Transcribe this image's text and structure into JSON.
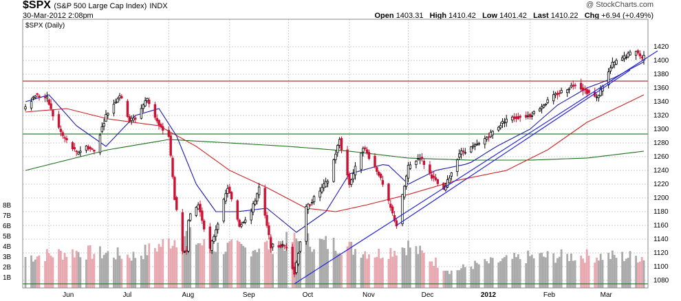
{
  "header": {
    "symbol": "$SPX",
    "name": "(S&P 500 Large Cap Index)",
    "exchange": "INDX",
    "datetime": "30-Mar-2012 2:08pm",
    "credit": "@ StockCharts.com",
    "quote": {
      "open_label": "Open",
      "open": "1403.31",
      "high_label": "High",
      "high": "1410.42",
      "low_label": "Low",
      "low": "1401.42",
      "last_label": "Last",
      "last": "1410.22",
      "chg_label": "Chg",
      "chg": "+6.94 (+0.49%)"
    }
  },
  "chart_data": {
    "type": "candlestick",
    "title": "$SPX (S&P 500 Large Cap Index)",
    "legend": "$SPX (Daily)",
    "price_axis": {
      "range": [
        1070,
        1425
      ],
      "ticks": [
        "1080",
        "1100",
        "1120",
        "1140",
        "1160",
        "1180",
        "1200",
        "1220",
        "1240",
        "1260",
        "1280",
        "1300",
        "1320",
        "1340",
        "1360",
        "1380",
        "1400",
        "1420"
      ]
    },
    "volume_axis": {
      "range": [
        0,
        9
      ],
      "ticks": [
        "1B",
        "2B",
        "3B",
        "4B",
        "5B",
        "6B",
        "7B",
        "8B"
      ]
    },
    "x_axis": {
      "range": [
        "2011-05-20",
        "2012-03-30"
      ],
      "ticks": [
        {
          "date": "2011-06-01",
          "label": "Jun"
        },
        {
          "date": "2011-07-01",
          "label": "Jul"
        },
        {
          "date": "2011-08-01",
          "label": "Aug"
        },
        {
          "date": "2011-09-01",
          "label": "Sep"
        },
        {
          "date": "2011-10-01",
          "label": "Oct"
        },
        {
          "date": "2011-11-01",
          "label": "Nov"
        },
        {
          "date": "2011-12-01",
          "label": "Dec"
        },
        {
          "date": "2012-01-01",
          "label": "2012"
        },
        {
          "date": "2012-02-01",
          "label": "Feb"
        },
        {
          "date": "2012-03-01",
          "label": "Mar"
        }
      ]
    },
    "close_path": [
      [
        "2011-05-20",
        1333
      ],
      [
        "2011-05-25",
        1350
      ],
      [
        "2011-05-31",
        1345
      ],
      [
        "2011-06-03",
        1320
      ],
      [
        "2011-06-08",
        1290
      ],
      [
        "2011-06-15",
        1265
      ],
      [
        "2011-06-20",
        1275
      ],
      [
        "2011-06-24",
        1268
      ],
      [
        "2011-06-30",
        1320
      ],
      [
        "2011-07-07",
        1350
      ],
      [
        "2011-07-12",
        1313
      ],
      [
        "2011-07-15",
        1316
      ],
      [
        "2011-07-21",
        1345
      ],
      [
        "2011-07-27",
        1305
      ],
      [
        "2011-08-01",
        1290
      ],
      [
        "2011-08-04",
        1200
      ],
      [
        "2011-08-08",
        1120
      ],
      [
        "2011-08-10",
        1125
      ],
      [
        "2011-08-11",
        1170
      ],
      [
        "2011-08-16",
        1190
      ],
      [
        "2011-08-22",
        1125
      ],
      [
        "2011-08-31",
        1215
      ],
      [
        "2011-09-06",
        1160
      ],
      [
        "2011-09-12",
        1180
      ],
      [
        "2011-09-16",
        1215
      ],
      [
        "2011-09-22",
        1130
      ],
      [
        "2011-09-30",
        1130
      ],
      [
        "2011-10-04",
        1090
      ],
      [
        "2011-10-10",
        1185
      ],
      [
        "2011-10-21",
        1225
      ],
      [
        "2011-10-27",
        1285
      ],
      [
        "2011-11-01",
        1220
      ],
      [
        "2011-11-08",
        1275
      ],
      [
        "2011-11-16",
        1235
      ],
      [
        "2011-11-25",
        1160
      ],
      [
        "2011-12-01",
        1245
      ],
      [
        "2011-12-07",
        1260
      ],
      [
        "2011-12-12",
        1235
      ],
      [
        "2011-12-19",
        1210
      ],
      [
        "2011-12-27",
        1265
      ],
      [
        "2012-01-06",
        1278
      ],
      [
        "2012-01-20",
        1315
      ],
      [
        "2012-02-01",
        1320
      ],
      [
        "2012-02-14",
        1350
      ],
      [
        "2012-02-24",
        1366
      ],
      [
        "2012-03-06",
        1345
      ],
      [
        "2012-03-14",
        1395
      ],
      [
        "2012-03-20",
        1405
      ],
      [
        "2012-03-26",
        1415
      ],
      [
        "2012-03-29",
        1403
      ],
      [
        "2012-03-30",
        1410
      ]
    ],
    "sma20_path": [
      [
        "2011-05-20",
        1340
      ],
      [
        "2011-06-01",
        1350
      ],
      [
        "2011-06-15",
        1305
      ],
      [
        "2011-06-30",
        1275
      ],
      [
        "2011-07-15",
        1320
      ],
      [
        "2011-07-27",
        1330
      ],
      [
        "2011-08-05",
        1290
      ],
      [
        "2011-08-15",
        1220
      ],
      [
        "2011-08-25",
        1180
      ],
      [
        "2011-09-05",
        1180
      ],
      [
        "2011-09-20",
        1185
      ],
      [
        "2011-10-05",
        1150
      ],
      [
        "2011-10-20",
        1180
      ],
      [
        "2011-11-01",
        1235
      ],
      [
        "2011-11-20",
        1250
      ],
      [
        "2011-12-01",
        1220
      ],
      [
        "2011-12-15",
        1240
      ],
      [
        "2012-01-01",
        1250
      ],
      [
        "2012-01-15",
        1275
      ],
      [
        "2012-02-01",
        1300
      ],
      [
        "2012-02-15",
        1335
      ],
      [
        "2012-03-01",
        1360
      ],
      [
        "2012-03-15",
        1375
      ],
      [
        "2012-03-30",
        1398
      ]
    ],
    "sma50_path": [
      [
        "2011-05-20",
        1325
      ],
      [
        "2011-06-10",
        1330
      ],
      [
        "2011-07-01",
        1315
      ],
      [
        "2011-07-27",
        1305
      ],
      [
        "2011-08-15",
        1275
      ],
      [
        "2011-09-01",
        1240
      ],
      [
        "2011-09-20",
        1215
      ],
      [
        "2011-10-10",
        1185
      ],
      [
        "2011-10-25",
        1180
      ],
      [
        "2011-11-10",
        1190
      ],
      [
        "2011-12-01",
        1205
      ],
      [
        "2011-12-25",
        1225
      ],
      [
        "2012-01-20",
        1240
      ],
      [
        "2012-02-10",
        1270
      ],
      [
        "2012-03-01",
        1310
      ],
      [
        "2012-03-30",
        1350
      ]
    ],
    "sma200_path": [
      [
        "2011-05-20",
        1240
      ],
      [
        "2011-07-01",
        1270
      ],
      [
        "2011-08-01",
        1285
      ],
      [
        "2011-09-01",
        1280
      ],
      [
        "2011-10-01",
        1275
      ],
      [
        "2011-11-01",
        1268
      ],
      [
        "2011-12-01",
        1258
      ],
      [
        "2012-01-01",
        1255
      ],
      [
        "2012-02-01",
        1255
      ],
      [
        "2012-03-01",
        1258
      ],
      [
        "2012-03-30",
        1268
      ]
    ],
    "horizontal_lines": [
      {
        "value": 1370,
        "color": "#b03030"
      },
      {
        "value": 1293,
        "color": "#2e7d32"
      },
      {
        "value": 1075,
        "color": "#2e7d32"
      }
    ],
    "trendlines": [
      {
        "from": [
          "2011-10-04",
          1075
        ],
        "to": [
          "2012-03-30",
          1400
        ],
        "color": "#2222dd"
      },
      {
        "from": [
          "2011-11-25",
          1160
        ],
        "to": [
          "2012-03-16",
          1372
        ],
        "color": "#2222dd"
      }
    ],
    "volume_path": [
      [
        "2011-05-20",
        3.0
      ],
      [
        "2011-06-15",
        3.5
      ],
      [
        "2011-07-15",
        3.1
      ],
      [
        "2011-08-05",
        4.8
      ],
      [
        "2011-08-09",
        5.2
      ],
      [
        "2011-08-20",
        4.0
      ],
      [
        "2011-09-10",
        3.8
      ],
      [
        "2011-10-05",
        4.6
      ],
      [
        "2011-10-25",
        4.2
      ],
      [
        "2011-11-15",
        3.3
      ],
      [
        "2011-12-01",
        4.1
      ],
      [
        "2011-12-23",
        1.6
      ],
      [
        "2012-01-03",
        2.2
      ],
      [
        "2012-02-01",
        3.0
      ],
      [
        "2012-03-01",
        3.1
      ],
      [
        "2012-03-30",
        3.0
      ]
    ],
    "colors": {
      "up_candle": "#000000",
      "down_candle": "#cc1133",
      "sma20": "#1a1aaa",
      "sma50": "#cc2222",
      "sma200": "#1b6e1b",
      "volume_up": "#aaaaaa",
      "volume_down": "#e8a8b0",
      "grid": "#cccccc"
    }
  }
}
